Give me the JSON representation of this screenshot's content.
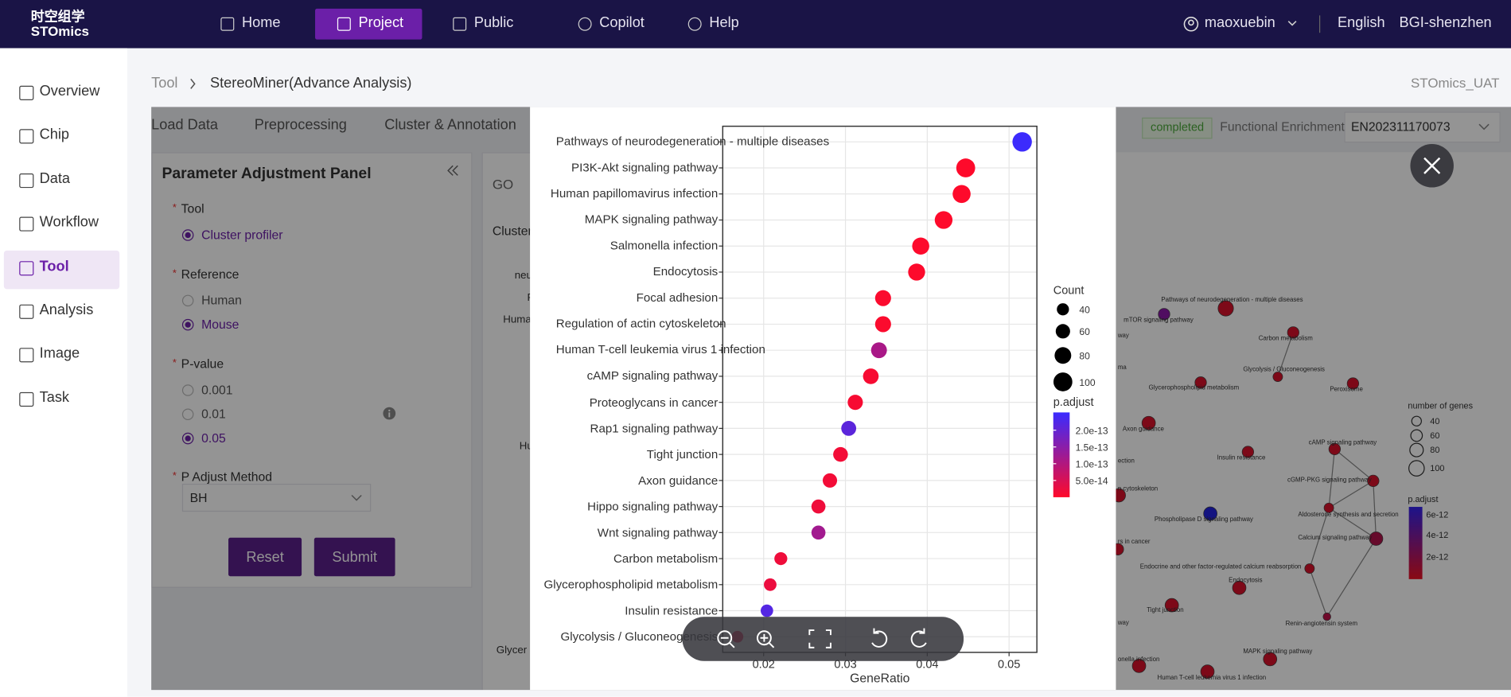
{
  "nav": {
    "logo_cn": "时空组学",
    "logo_en": "STOmics",
    "items": [
      "Home",
      "Project",
      "Public",
      "Copilot",
      "Help"
    ],
    "active": 1,
    "user": "maoxuebin",
    "language": "English",
    "org": "BGI-shenzhen"
  },
  "sidebar": {
    "items": [
      "Overview",
      "Chip",
      "Data",
      "Workflow",
      "Tool",
      "Analysis",
      "Image",
      "Task"
    ],
    "active": 4
  },
  "breadcrumb": [
    "Tool",
    "StereoMiner(Advance Analysis)"
  ],
  "env": "STOmics_UAT",
  "tabs": [
    "Load Data",
    "Preprocessing",
    "Cluster & Annotation"
  ],
  "status": "completed",
  "enrichment_label": "Functional Enrichment:",
  "enrichment_id": "EN202311170073",
  "panel": {
    "title": "Parameter Adjustment Panel",
    "fields": [
      {
        "label": "Tool",
        "options": [
          "Cluster profiler"
        ],
        "selected": 0
      },
      {
        "label": "Reference",
        "options": [
          "Human",
          "Mouse"
        ],
        "selected": 1
      },
      {
        "label": "P-value",
        "options": [
          "0.001",
          "0.01",
          "0.05"
        ],
        "selected": 2
      },
      {
        "label": "P Adjust Method",
        "value": "BH"
      }
    ],
    "buttons": [
      "Reset",
      "Submit"
    ]
  },
  "result_fragments": [
    "GO",
    "Cluster",
    "neu",
    "P",
    "Huma",
    "Hu",
    "Glycer"
  ],
  "network": {
    "labels": [
      "Pathways of neurodegeneration - multiple diseases",
      "mTOR signaling pathway",
      "Carbon metabolism",
      "Glycolysis / Gluconeogenesis",
      "Glycerophospholipid metabolism",
      "Peroxisome",
      "Axon guidance",
      "Insulin resistance",
      "cAMP signaling pathway",
      "cGMP-PKG signaling pathway",
      "Aldosterone synthesis and secretion",
      "Phospholipase D signaling pathway",
      "Calcium signaling pathway",
      "Endocrine and other factor-regulated calcium reabsorption",
      "Endocytosis",
      "Tight junction",
      "Renin-angiotensin system",
      "MAPK signaling pathway",
      "Human T-cell leukemia virus 1 infection",
      "way",
      "ma",
      "ection",
      "n cytoskeleton",
      "rs in cancer",
      "way",
      "onella infection"
    ],
    "size_legend_title": "number of genes",
    "size_legend": [
      "40",
      "60",
      "80",
      "100"
    ],
    "color_legend_title": "p.adjust",
    "color_legend": [
      "6e-12",
      "4e-12",
      "2e-12"
    ]
  },
  "chart_data": {
    "type": "dot",
    "categories": [
      "Pathways of neurodegeneration - multiple diseases",
      "PI3K-Akt signaling pathway",
      "Human papillomavirus infection",
      "MAPK signaling pathway",
      "Salmonella infection",
      "Endocytosis",
      "Focal adhesion",
      "Regulation of actin cytoskeleton",
      "Human T-cell leukemia virus 1 infection",
      "cAMP signaling pathway",
      "Proteoglycans in cancer",
      "Rap1 signaling pathway",
      "Tight junction",
      "Axon guidance",
      "Hippo signaling pathway",
      "Wnt signaling pathway",
      "Carbon metabolism",
      "Glycerophospholipid metabolism",
      "Insulin resistance",
      "Glycolysis / Gluconeogenesis"
    ],
    "values": [
      0.0516,
      0.0447,
      0.0442,
      0.042,
      0.0392,
      0.0387,
      0.0346,
      0.0346,
      0.0341,
      0.0331,
      0.0312,
      0.0304,
      0.0294,
      0.0281,
      0.0267,
      0.0267,
      0.0221,
      0.0208,
      0.0204,
      0.0168
    ],
    "counts": [
      105,
      100,
      92,
      90,
      84,
      83,
      74,
      74,
      73,
      71,
      67,
      65,
      63,
      60,
      57,
      57,
      47,
      44,
      43,
      36
    ],
    "padjust": [
      2.5e-13,
      1e-15,
      1e-15,
      1e-15,
      2e-15,
      2e-15,
      5e-15,
      5e-15,
      1.1e-13,
      1e-14,
      1e-14,
      2.1e-13,
      1.5e-14,
      1.5e-14,
      2e-14,
      1.2e-13,
      2e-14,
      2.5e-14,
      2.2e-13,
      3e-14
    ],
    "xlabel": "GeneRatio",
    "xlim": [
      0.015,
      0.0534
    ],
    "xticks": [
      0.02,
      0.03,
      0.04,
      0.05
    ],
    "grid": true,
    "size_title": "Count",
    "size_ticks": [
      40,
      60,
      80,
      100
    ],
    "color_title": "p.adjust",
    "color_lim": [
      0,
      2.53e-13
    ],
    "color_ticks": [
      {
        "value": 2e-13,
        "label": "2.0e-13"
      },
      {
        "value": 1.5e-13,
        "label": "1.5e-13"
      },
      {
        "value": 1e-13,
        "label": "1.0e-13"
      },
      {
        "value": 5e-14,
        "label": "5.0e-14"
      }
    ],
    "color_low": "#ff0a2a",
    "color_high": "#3a2bff"
  }
}
